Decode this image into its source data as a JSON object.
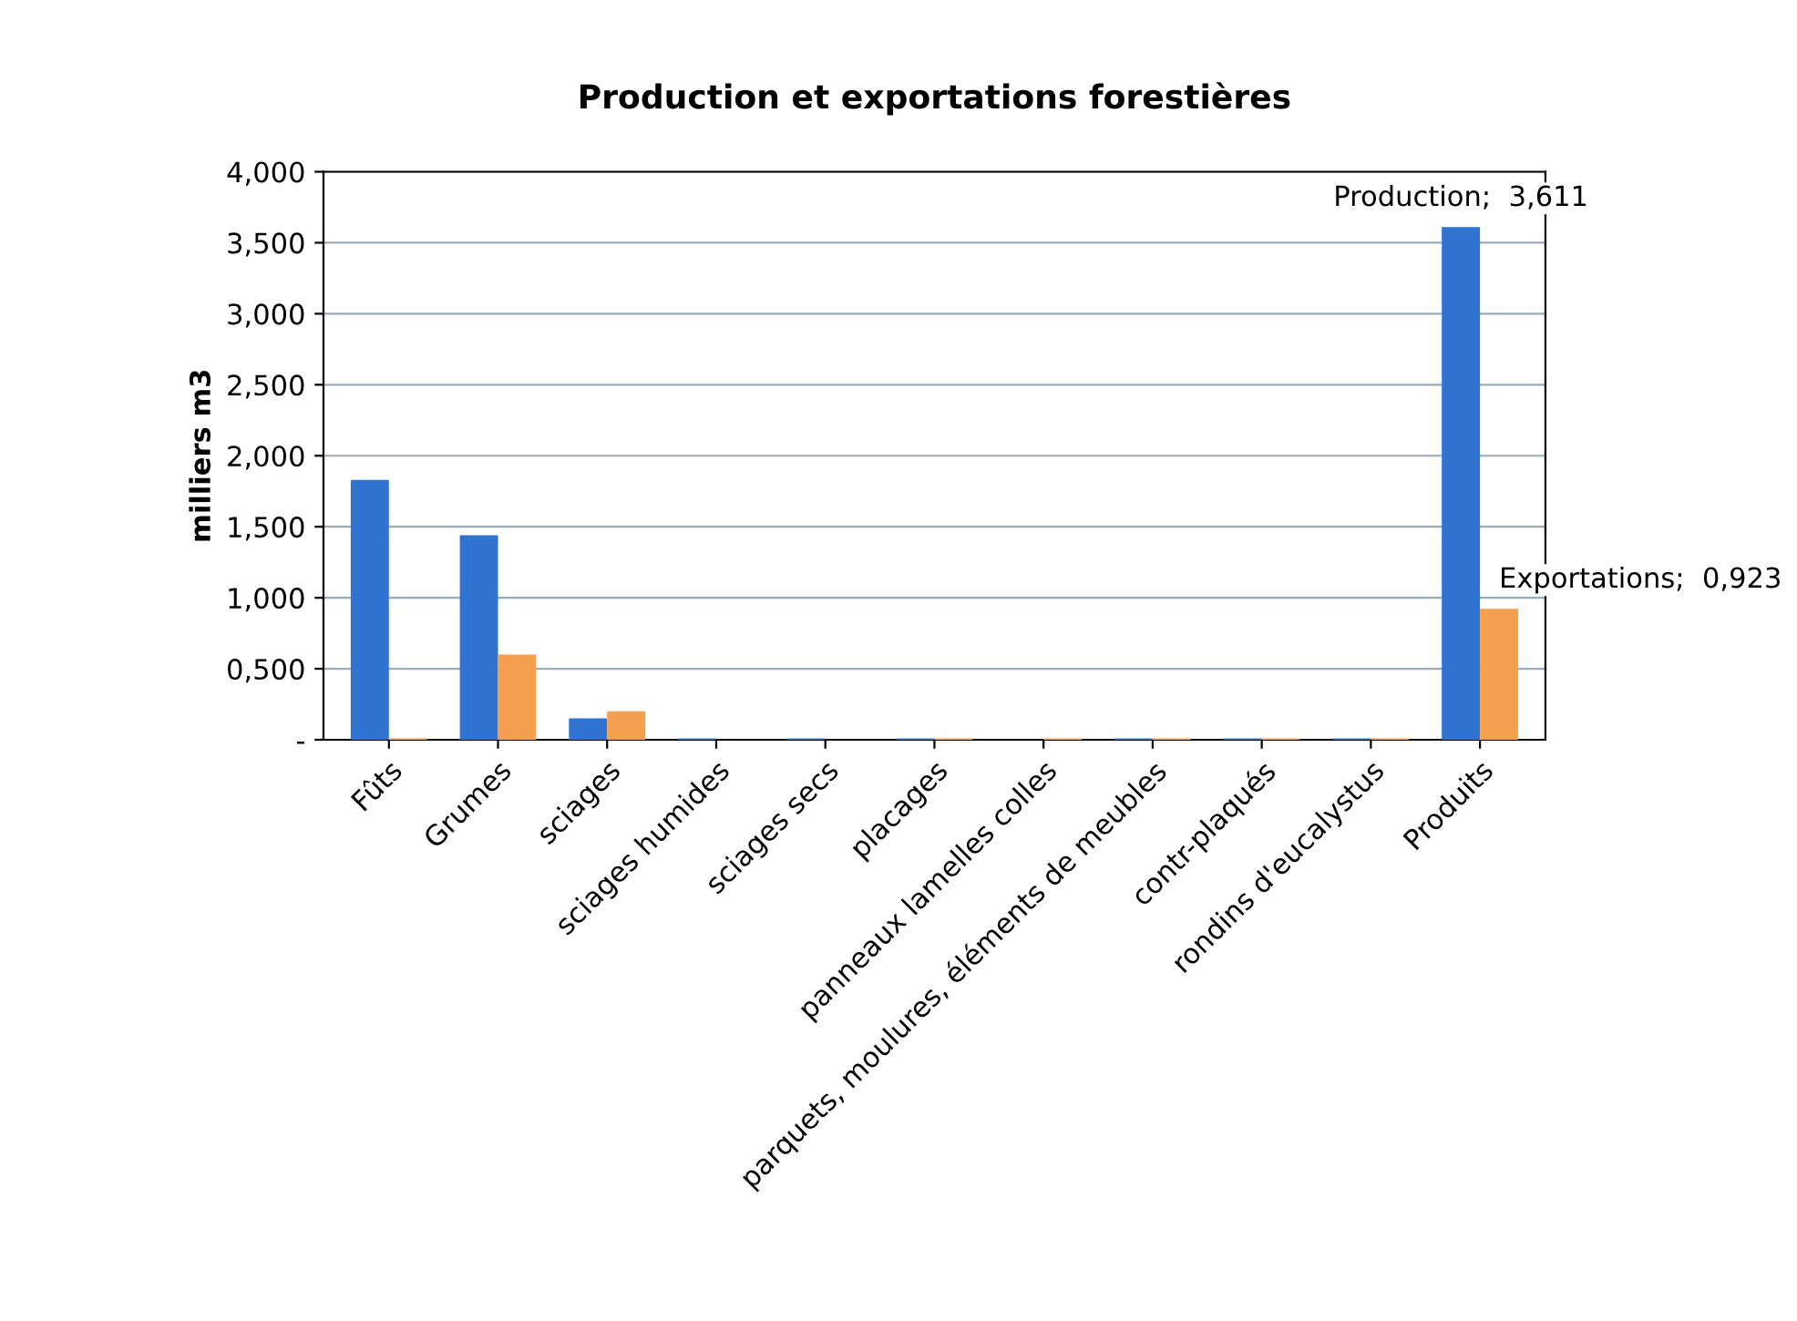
{
  "chart_data": {
    "type": "bar",
    "title": "Production et exportations forestières",
    "ylabel": "milliers m3",
    "categories": [
      "Fûts",
      "Grumes",
      "sciages",
      "sciages humides",
      "sciages secs",
      "placages",
      "panneaux lamelles colles",
      "parquets, moulures, éléments de meubles",
      "contr-plaqués",
      "rondins d'eucalystus",
      "Produits"
    ],
    "series": [
      {
        "name": "Production",
        "color": "#2f74d0",
        "values": [
          1.83,
          1.44,
          0.15,
          0.01,
          0.01,
          0.01,
          0,
          0.01,
          0.01,
          0.01,
          3.611
        ],
        "value_labels": [
          null,
          null,
          null,
          null,
          null,
          null,
          null,
          null,
          null,
          null,
          ";  3,611"
        ]
      },
      {
        "name": "Exportations",
        "color": "#f5a04e",
        "values": [
          0.01,
          0.6,
          0.2,
          0,
          0,
          0.01,
          0.01,
          0.01,
          0.01,
          0.01,
          0.923
        ],
        "value_labels": [
          null,
          null,
          null,
          null,
          null,
          null,
          null,
          null,
          null,
          null,
          ";  0,923"
        ]
      }
    ],
    "ylim": [
      0,
      4
    ],
    "yticks": [
      {
        "value": 0,
        "label": "-"
      },
      {
        "value": 0.5,
        "label": "0,500"
      },
      {
        "value": 1,
        "label": "1,000"
      },
      {
        "value": 1.5,
        "label": "1,500"
      },
      {
        "value": 2,
        "label": "2,000"
      },
      {
        "value": 2.5,
        "label": "2,500"
      },
      {
        "value": 3,
        "label": "3,000"
      },
      {
        "value": 3.5,
        "label": "3,500"
      },
      {
        "value": 4,
        "label": "4,000"
      }
    ],
    "grid": "y"
  }
}
